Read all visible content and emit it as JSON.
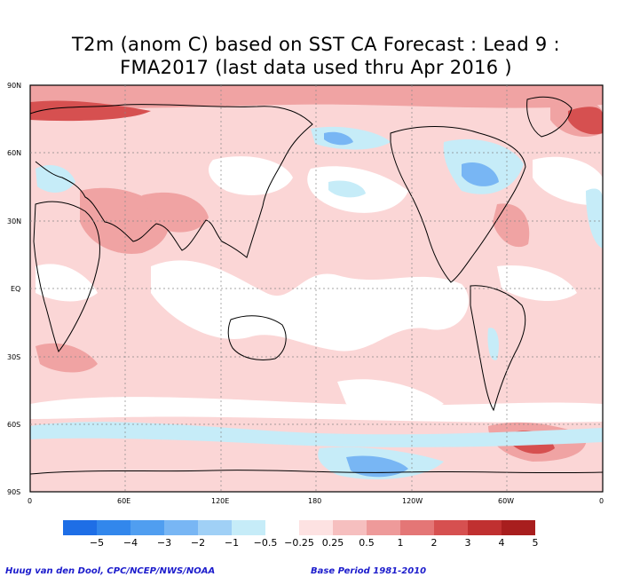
{
  "title_line1": "T2m (anom C) based on SST CA Forecast : Lead 9 :",
  "title_line2": "FMA2017 (last data used thru Apr 2016 )",
  "lat_labels": [
    "90N",
    "60N",
    "30N",
    "EQ",
    "30S",
    "60S",
    "90S"
  ],
  "lon_labels": [
    "0",
    "60E",
    "120E",
    "180",
    "120W",
    "60W",
    "0"
  ],
  "legend": {
    "colors": [
      "#1e6ee6",
      "#3287ec",
      "#509ef0",
      "#78b6f4",
      "#a0d0f6",
      "#c6ecf8",
      "#ffffff",
      "#fde2e2",
      "#f6bfbf",
      "#ee9a9a",
      "#e47676",
      "#d65050",
      "#c03030",
      "#a81e1e"
    ],
    "labels": [
      "−5",
      "−4",
      "−3",
      "−2",
      "−1",
      "−0.5",
      "−0.25",
      "0.25",
      "0.5",
      "1",
      "2",
      "3",
      "4",
      "5"
    ]
  },
  "credit_left": "Huug van den Dool, CPC/NCEP/NWS/NOAA",
  "credit_right": "Base Period 1981-2010"
}
